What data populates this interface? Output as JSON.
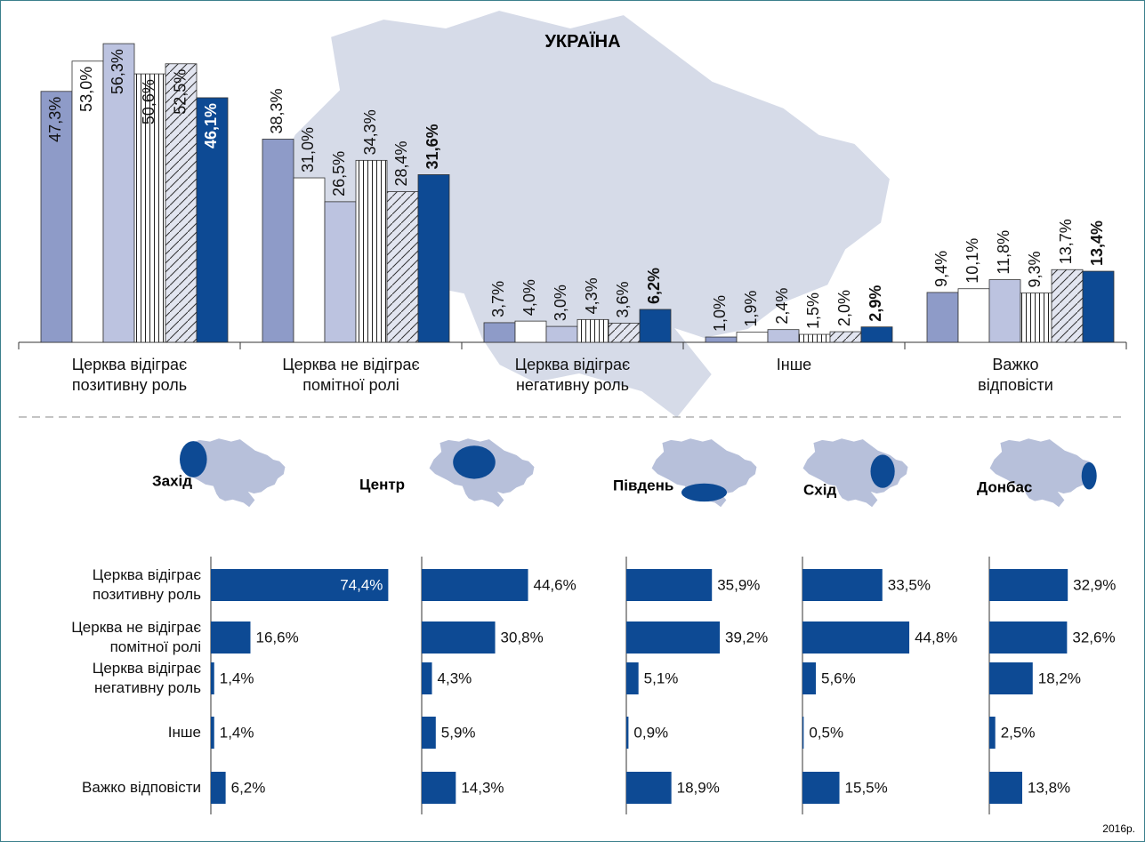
{
  "title": "УКРАЇНА",
  "footnote": "2016р.",
  "chart_data": [
    {
      "type": "bar",
      "categories": [
        "Церква відіграє\nпозитивну роль",
        "Церква не відіграє\nпомітної ролі",
        "Церква відіграє\nнегативну роль",
        "Інше",
        "Важко\nвідповісти"
      ],
      "ylim": [
        0,
        60
      ],
      "series": [
        {
          "color": "#8e9bc8",
          "values": [
            47.3,
            38.3,
            3.7,
            1.0,
            9.4
          ],
          "value_labels": [
            "47,3%",
            "38,3%",
            "3,7%",
            "1,0%",
            "9,4%"
          ]
        },
        {
          "color": "#ffffff",
          "values": [
            53.0,
            31.0,
            4.0,
            1.9,
            10.1
          ],
          "value_labels": [
            "53,0%",
            "31,0%",
            "4,0%",
            "1,9%",
            "10,1%"
          ]
        },
        {
          "color": "#bcc3e0",
          "values": [
            56.3,
            26.5,
            3.0,
            2.4,
            11.8
          ],
          "value_labels": [
            "56,3%",
            "26,5%",
            "3,0%",
            "2,4%",
            "11,8%"
          ]
        },
        {
          "color": "#ffffff",
          "pattern": "vertical",
          "values": [
            50.6,
            34.3,
            4.3,
            1.5,
            9.3
          ],
          "value_labels": [
            "50,6%",
            "34,3%",
            "4,3%",
            "1,5%",
            "9,3%"
          ]
        },
        {
          "color": "#e2e5f0",
          "pattern": "diagonal",
          "values": [
            52.5,
            28.4,
            3.6,
            2.0,
            13.7
          ],
          "value_labels": [
            "52,5%",
            "28,4%",
            "3,6%",
            "2,0%",
            "13,7%"
          ]
        },
        {
          "color": "#0d4a94",
          "bold": true,
          "values": [
            46.1,
            31.6,
            6.2,
            2.9,
            13.4
          ],
          "value_labels": [
            "46,1%",
            "31,6%",
            "6,2%",
            "2,9%",
            "13,4%"
          ]
        }
      ]
    },
    {
      "type": "hbar",
      "title": "Захід",
      "color": "#0d4a94",
      "xlim": [
        0,
        75
      ],
      "categories": [
        "Церква відіграє\nпозитивну роль",
        "Церква не відіграє\nпомітної ролі",
        "Церква відіграє\nнегативну роль",
        "Інше",
        "Важко відповісти"
      ],
      "values": [
        74.4,
        16.6,
        1.4,
        1.4,
        6.2
      ],
      "value_labels": [
        "74,4%",
        "16,6%",
        "1,4%",
        "1,4%",
        "6,2%"
      ]
    },
    {
      "type": "hbar",
      "title": "Центр",
      "color": "#0d4a94",
      "xlim": [
        0,
        75
      ],
      "values": [
        44.6,
        30.8,
        4.3,
        5.9,
        14.3
      ],
      "value_labels": [
        "44,6%",
        "30,8%",
        "4,3%",
        "5,9%",
        "14,3%"
      ]
    },
    {
      "type": "hbar",
      "title": "Південь",
      "color": "#0d4a94",
      "xlim": [
        0,
        75
      ],
      "values": [
        35.9,
        39.2,
        5.1,
        0.9,
        18.9
      ],
      "value_labels": [
        "35,9%",
        "39,2%",
        "5,1%",
        "0,9%",
        "18,9%"
      ]
    },
    {
      "type": "hbar",
      "title": "Схід",
      "color": "#0d4a94",
      "xlim": [
        0,
        75
      ],
      "values": [
        33.5,
        44.8,
        5.6,
        0.5,
        15.5
      ],
      "value_labels": [
        "33,5%",
        "44,8%",
        "5,6%",
        "0,5%",
        "15,5%"
      ]
    },
    {
      "type": "hbar",
      "title": "Донбас",
      "color": "#0d4a94",
      "xlim": [
        0,
        75
      ],
      "values": [
        32.9,
        32.6,
        18.2,
        2.5,
        13.8
      ],
      "value_labels": [
        "32,9%",
        "32,6%",
        "18,2%",
        "2,5%",
        "13,8%"
      ]
    }
  ]
}
